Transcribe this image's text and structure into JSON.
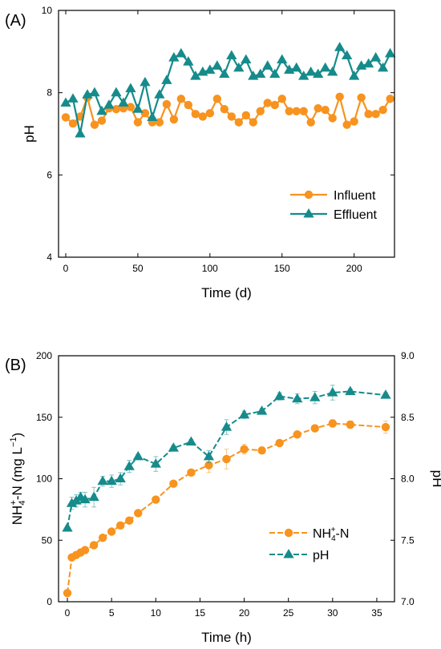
{
  "panels": [
    {
      "label": "(A)",
      "legend": {
        "placement": "bottom-right"
      }
    },
    {
      "label": "(B)",
      "legend": {
        "placement": "right-middle"
      }
    }
  ],
  "colors": {
    "orange": "#F7931E",
    "teal": "#168B8B"
  },
  "chart_data": [
    {
      "type": "line",
      "title": "",
      "xlabel": "Time (d)",
      "ylabel": "pH",
      "xlim": [
        -5,
        228
      ],
      "ylim": [
        4,
        10
      ],
      "xticks": [
        0,
        50,
        100,
        150,
        200
      ],
      "yticks": [
        4,
        6,
        8,
        10
      ],
      "grid": false,
      "series": [
        {
          "name": "Influent",
          "marker": "circle",
          "color": "#F7931E",
          "x": [
            0,
            5,
            10,
            15,
            20,
            25,
            30,
            35,
            40,
            45,
            50,
            55,
            60,
            65,
            70,
            75,
            80,
            85,
            90,
            95,
            100,
            105,
            110,
            115,
            120,
            125,
            130,
            135,
            140,
            145,
            150,
            155,
            160,
            165,
            170,
            175,
            180,
            185,
            190,
            195,
            200,
            205,
            210,
            215,
            220,
            225
          ],
          "y": [
            7.4,
            7.25,
            7.42,
            7.88,
            7.22,
            7.32,
            7.62,
            7.6,
            7.62,
            7.65,
            7.28,
            7.5,
            7.28,
            7.28,
            7.72,
            7.35,
            7.85,
            7.7,
            7.48,
            7.42,
            7.5,
            7.85,
            7.6,
            7.42,
            7.28,
            7.45,
            7.28,
            7.55,
            7.75,
            7.7,
            7.85,
            7.55,
            7.55,
            7.55,
            7.28,
            7.62,
            7.58,
            7.38,
            7.9,
            7.22,
            7.3,
            7.88,
            7.48,
            7.48,
            7.58,
            7.85
          ]
        },
        {
          "name": "Effluent",
          "marker": "triangle",
          "color": "#168B8B",
          "x": [
            0,
            5,
            10,
            15,
            20,
            25,
            30,
            35,
            40,
            45,
            50,
            55,
            60,
            65,
            70,
            75,
            80,
            85,
            90,
            95,
            100,
            105,
            110,
            115,
            120,
            125,
            130,
            135,
            140,
            145,
            150,
            155,
            160,
            165,
            170,
            175,
            180,
            185,
            190,
            195,
            200,
            205,
            210,
            215,
            220,
            225
          ],
          "y": [
            7.75,
            7.85,
            7.0,
            7.95,
            8.0,
            7.55,
            7.7,
            8.0,
            7.75,
            8.1,
            7.6,
            8.25,
            7.4,
            7.95,
            8.3,
            8.85,
            8.95,
            8.75,
            8.4,
            8.5,
            8.55,
            8.65,
            8.45,
            8.9,
            8.6,
            8.8,
            8.4,
            8.45,
            8.65,
            8.45,
            8.8,
            8.55,
            8.6,
            8.4,
            8.5,
            8.45,
            8.6,
            8.5,
            9.1,
            8.9,
            8.4,
            8.65,
            8.7,
            8.85,
            8.6,
            8.95
          ]
        }
      ]
    },
    {
      "type": "line",
      "title": "",
      "xlabel": "Time (h)",
      "ylabel": "NH4+-N (mg L-1)",
      "ylabel_parts": {
        "base": "NH",
        "sub": "4",
        "sup": "+",
        "tail": "-N (mg L",
        "unit_sup": "−1",
        "close": ")"
      },
      "y2label": "pH",
      "xlim": [
        -1,
        37
      ],
      "ylim": [
        0,
        200
      ],
      "y2lim": [
        7.0,
        9.0
      ],
      "xticks": [
        0,
        5,
        10,
        15,
        20,
        25,
        30,
        35
      ],
      "yticks": [
        0,
        50,
        100,
        150,
        200
      ],
      "y2ticks": [
        "7.0",
        "7.5",
        "8.0",
        "8.5",
        "9.0"
      ],
      "grid": false,
      "series": [
        {
          "name": "NH4+-N",
          "name_parts": {
            "base": "NH",
            "sub": "4",
            "sup": "+",
            "tail": "-N"
          },
          "axis": "left",
          "marker": "circle",
          "color": "#F7931E",
          "x": [
            0,
            0.5,
            1,
            1.5,
            2,
            3,
            4,
            5,
            6,
            7,
            8,
            10,
            12,
            14,
            16,
            18,
            20,
            22,
            24,
            26,
            28,
            30,
            32,
            36
          ],
          "y": [
            7,
            36,
            38,
            40,
            42,
            46,
            52,
            57,
            62,
            66,
            72,
            83,
            96,
            105,
            111,
            116,
            124,
            123,
            129,
            136,
            141,
            145,
            144,
            142
          ],
          "error": [
            0,
            0,
            0,
            0,
            0,
            0,
            0,
            0,
            0,
            0,
            0,
            0,
            0,
            0,
            6,
            8,
            4,
            0,
            0,
            0,
            0,
            3,
            3,
            5
          ]
        },
        {
          "name": "pH",
          "axis": "right",
          "marker": "triangle",
          "color": "#168B8B",
          "x": [
            0,
            0.5,
            1,
            1.5,
            2,
            3,
            4,
            5,
            6,
            7,
            8,
            10,
            12,
            14,
            16,
            18,
            20,
            22,
            24,
            26,
            28,
            30,
            32,
            36
          ],
          "y": [
            7.6,
            7.8,
            7.82,
            7.85,
            7.83,
            7.85,
            7.98,
            7.98,
            8.0,
            8.1,
            8.18,
            8.12,
            8.25,
            8.3,
            8.18,
            8.42,
            8.52,
            8.55,
            8.67,
            8.65,
            8.66,
            8.7,
            8.71,
            8.68
          ],
          "error": [
            0,
            0.05,
            0.05,
            0.04,
            0.06,
            0.08,
            0.04,
            0.05,
            0.05,
            0.05,
            0.02,
            0.06,
            0.02,
            0.02,
            0.05,
            0.06,
            0.03,
            0.02,
            0.03,
            0.04,
            0.05,
            0.06,
            0.02,
            0.02
          ]
        }
      ]
    }
  ]
}
